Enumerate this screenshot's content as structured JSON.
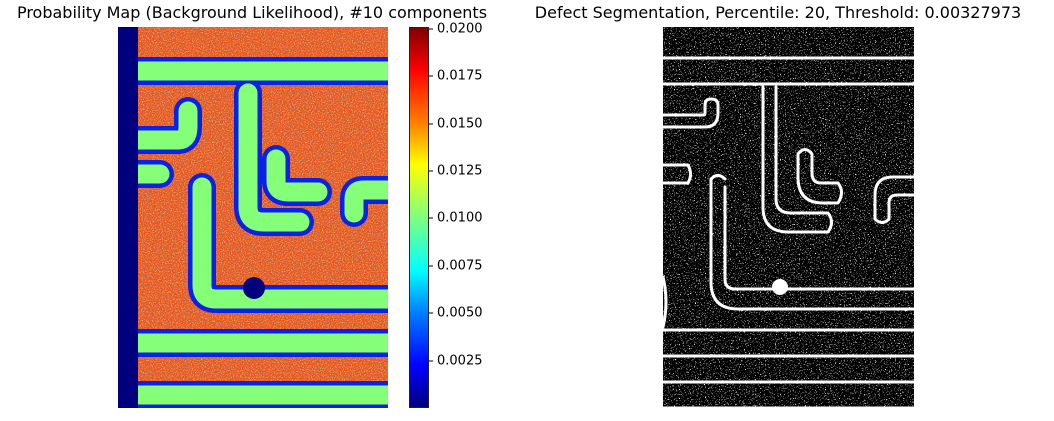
{
  "figure": {
    "left_title": "Probability Map (Background Likelihood), #10 components",
    "right_title": "Defect Segmentation, Percentile: 20, Threshold: 0.00327973"
  },
  "colors": {
    "background_noise": "#e8531e",
    "track": "#7fff7f",
    "edge": "#0000ff",
    "border": "#00007f",
    "seg_background": "#000000",
    "seg_foreground": "#ffffff"
  },
  "chart_data": [
    {
      "type": "heatmap",
      "title": "Probability Map (Background Likelihood), #10 components",
      "colormap": "jet",
      "axes": "off",
      "colorbar": {
        "min": 0.0,
        "max": 0.0201,
        "ticks": [
          0.0025,
          0.005,
          0.0075,
          0.01,
          0.0125,
          0.015,
          0.0175,
          0.02
        ],
        "tick_labels": [
          "0.0025",
          "0.0050",
          "0.0075",
          "0.0100",
          "0.0125",
          "0.0150",
          "0.0175",
          "0.0200"
        ]
      }
    },
    {
      "type": "heatmap",
      "title": "Defect Segmentation, Percentile: 20, Threshold: 0.00327973",
      "colormap": "gray",
      "axes": "off",
      "percentile": 20,
      "threshold": 0.00327973
    }
  ]
}
